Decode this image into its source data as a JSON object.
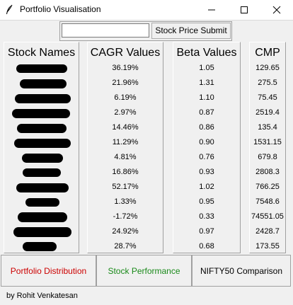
{
  "window": {
    "title": "Portfolio Visualisation"
  },
  "controls": {
    "input_value": "",
    "submit_label": "Stock Price Submit"
  },
  "columns": {
    "names_header": "Stock Names",
    "cagr_header": "CAGR Values",
    "beta_header": "Beta Values",
    "cmp_header": "CMP"
  },
  "rows": [
    {
      "cagr": "36.19%",
      "beta": "1.05",
      "cmp": "129.65"
    },
    {
      "cagr": "21.96%",
      "beta": "1.31",
      "cmp": "275.5"
    },
    {
      "cagr": "6.19%",
      "beta": "1.10",
      "cmp": "75.45"
    },
    {
      "cagr": "2.97%",
      "beta": "0.87",
      "cmp": "2519.4"
    },
    {
      "cagr": "14.46%",
      "beta": "0.86",
      "cmp": "135.4"
    },
    {
      "cagr": "11.29%",
      "beta": "0.90",
      "cmp": "1531.15"
    },
    {
      "cagr": "4.81%",
      "beta": "0.76",
      "cmp": "679.8"
    },
    {
      "cagr": "16.86%",
      "beta": "0.93",
      "cmp": "2808.3"
    },
    {
      "cagr": "52.17%",
      "beta": "1.02",
      "cmp": "766.25"
    },
    {
      "cagr": "1.33%",
      "beta": "0.95",
      "cmp": "7548.6"
    },
    {
      "cagr": "-1.72%",
      "beta": "0.33",
      "cmp": "74551.05"
    },
    {
      "cagr": "24.92%",
      "beta": "0.97",
      "cmp": "2428.7"
    },
    {
      "cagr": "28.7%",
      "beta": "0.68",
      "cmp": "173.55"
    }
  ],
  "actions": {
    "portfolio_distribution": "Portfolio Distribution",
    "stock_performance": "Stock Performance",
    "nifty_comparison": "NIFTY50 Comparison"
  },
  "footer": {
    "credit": "by Rohit Venkatesan"
  },
  "colors": {
    "portfolio_distribution": "#cc0000",
    "stock_performance": "#1a8a1a"
  }
}
